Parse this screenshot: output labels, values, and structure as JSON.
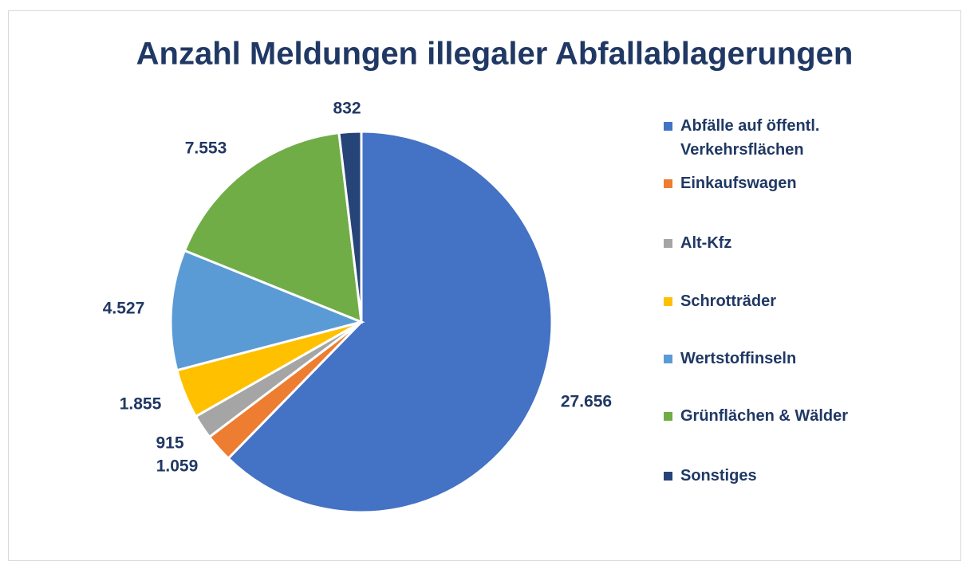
{
  "chart_data": {
    "type": "pie",
    "title": "Anzahl Meldungen illegaler Abfallablagerungen",
    "categories": [
      "Abfälle auf öffentl. Verkehrsflächen",
      "Einkaufswagen",
      "Alt-Kfz",
      "Schrotträder",
      "Wertstoffinseln",
      "Grünflächen & Wälder",
      "Sonstiges"
    ],
    "values": [
      27656,
      1059,
      915,
      1855,
      4527,
      7553,
      832
    ],
    "value_labels": [
      "27.656",
      "1.059",
      "915",
      "1.855",
      "4.527",
      "7.553",
      "832"
    ],
    "colors": [
      "#4472c4",
      "#ed7d31",
      "#a5a5a5",
      "#ffc000",
      "#5b9bd5",
      "#70ad47",
      "#264478"
    ],
    "legend": "right"
  }
}
